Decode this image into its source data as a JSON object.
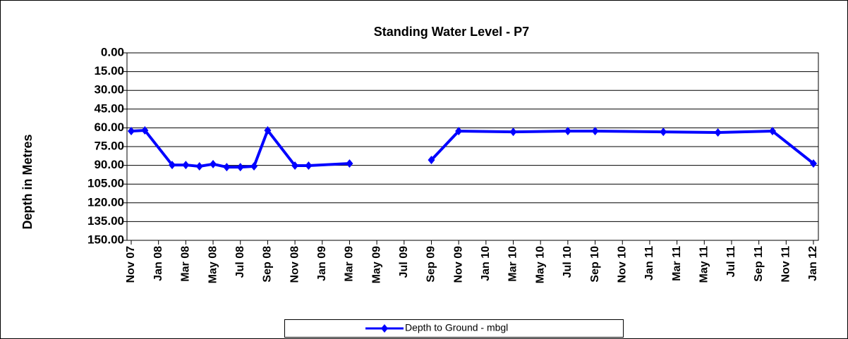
{
  "chart_data": {
    "type": "line",
    "title": "Standing Water Level - P7",
    "y_label": "Depth in Metres",
    "x": [
      "2007-11",
      "2007-12",
      "2008-02",
      "2008-03",
      "2008-04",
      "2008-05",
      "2008-06",
      "2008-07",
      "2008-08",
      "2008-09",
      "2008-11",
      "2008-12",
      "2009-03",
      "2009-06",
      "2009-09",
      "2009-11",
      "2010-03",
      "2010-07",
      "2010-09",
      "2011-02",
      "2011-06",
      "2011-10",
      "2012-01"
    ],
    "series": [
      {
        "name": "Depth to Ground - mbgl",
        "color": "#0000ff",
        "values": [
          62.6,
          62,
          89.7,
          89.7,
          90.8,
          89,
          91.4,
          91.4,
          90.8,
          62,
          90.2,
          90.2,
          88.5,
          null,
          85.7,
          62.6,
          63.2,
          62.6,
          62.6,
          63.2,
          63.7,
          62.6,
          88.5
        ]
      }
    ],
    "xlim": [
      "2007-11",
      "2012-01"
    ],
    "xticks": [
      {
        "value": "2007-11",
        "label": "Nov 07"
      },
      {
        "value": "2008-01",
        "label": "Jan 08"
      },
      {
        "value": "2008-03",
        "label": "Mar 08"
      },
      {
        "value": "2008-05",
        "label": "May 08"
      },
      {
        "value": "2008-07",
        "label": "Jul 08"
      },
      {
        "value": "2008-09",
        "label": "Sep 08"
      },
      {
        "value": "2008-11",
        "label": "Nov 08"
      },
      {
        "value": "2009-01",
        "label": "Jan 09"
      },
      {
        "value": "2009-03",
        "label": "Mar 09"
      },
      {
        "value": "2009-05",
        "label": "May 09"
      },
      {
        "value": "2009-07",
        "label": "Jul 09"
      },
      {
        "value": "2009-09",
        "label": "Sep 09"
      },
      {
        "value": "2009-11",
        "label": "Nov 09"
      },
      {
        "value": "2010-01",
        "label": "Jan 10"
      },
      {
        "value": "2010-03",
        "label": "Mar 10"
      },
      {
        "value": "2010-05",
        "label": "May 10"
      },
      {
        "value": "2010-07",
        "label": "Jul 10"
      },
      {
        "value": "2010-09",
        "label": "Sep 10"
      },
      {
        "value": "2010-11",
        "label": "Nov 10"
      },
      {
        "value": "2011-01",
        "label": "Jan 11"
      },
      {
        "value": "2011-03",
        "label": "Mar 11"
      },
      {
        "value": "2011-05",
        "label": "May 11"
      },
      {
        "value": "2011-07",
        "label": "Jul 11"
      },
      {
        "value": "2011-09",
        "label": "Sep 11"
      },
      {
        "value": "2011-11",
        "label": "Nov 11"
      },
      {
        "value": "2012-01",
        "label": "Jan 12"
      }
    ],
    "ylim": [
      0,
      150
    ],
    "y_inverted": true,
    "yticks": [
      {
        "value": 0,
        "label": "0.00"
      },
      {
        "value": 15,
        "label": "15.00"
      },
      {
        "value": 30,
        "label": "30.00"
      },
      {
        "value": 45,
        "label": "45.00"
      },
      {
        "value": 60,
        "label": "60.00"
      },
      {
        "value": 75,
        "label": "75.00"
      },
      {
        "value": 90,
        "label": "90.00"
      },
      {
        "value": 105,
        "label": "105.00"
      },
      {
        "value": 120,
        "label": "120.00"
      },
      {
        "value": 135,
        "label": "135.00"
      },
      {
        "value": 150,
        "label": "150.00"
      }
    ],
    "grid": true,
    "legend": "bottom"
  }
}
